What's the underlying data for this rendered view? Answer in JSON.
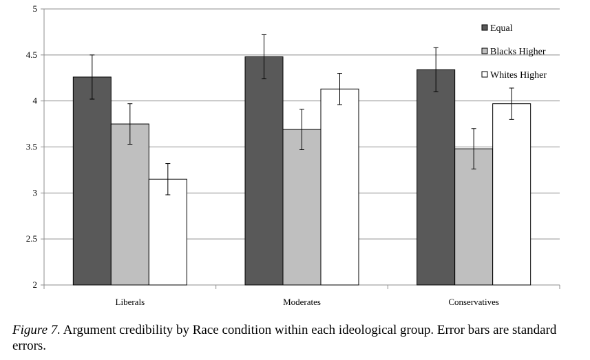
{
  "chart_data": {
    "type": "bar",
    "categories": [
      "Liberals",
      "Moderates",
      "Conservatives"
    ],
    "series": [
      {
        "name": "Equal",
        "color": "#595959",
        "values": [
          4.26,
          4.48,
          4.34
        ],
        "errors": [
          0.24,
          0.24,
          0.24
        ]
      },
      {
        "name": "Blacks Higher",
        "color": "#bfbfbf",
        "values": [
          3.75,
          3.69,
          3.48
        ],
        "errors": [
          0.22,
          0.22,
          0.22
        ]
      },
      {
        "name": "Whites Higher",
        "color": "#ffffff",
        "values": [
          3.15,
          4.13,
          3.97
        ],
        "errors": [
          0.17,
          0.17,
          0.17
        ]
      }
    ],
    "ylim": [
      2,
      5
    ],
    "yticks": [
      "2",
      "2.5",
      "3",
      "3.5",
      "4",
      "4.5",
      "5"
    ],
    "grid": true,
    "legend_position": "top-right"
  },
  "caption": {
    "label": "Figure 7.",
    "text": " Argument credibility by Race condition within each ideological group. Error bars are standard errors."
  }
}
